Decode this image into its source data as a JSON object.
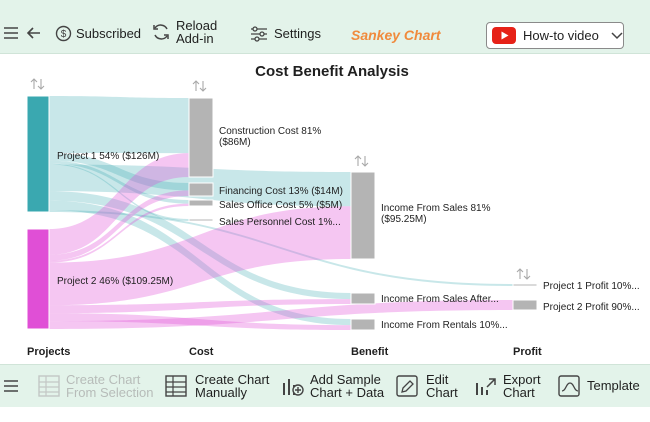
{
  "toolbar_top": {
    "subscribed_label": "Subscribed",
    "reload_label": "Reload\nAdd-in",
    "settings_label": "Settings",
    "app_title": "Sankey Chart",
    "howto_label": "How-to video"
  },
  "toolbar_bottom": {
    "create_from_selection_label": "Create Chart\nFrom Selection",
    "create_manually_label": "Create Chart\nManually",
    "add_sample_label": "Add Sample\nChart + Data",
    "edit_chart_label": "Edit\nChart",
    "export_chart_label": "Export\nChart",
    "template_label": "Template"
  },
  "colors": {
    "toolbar_bg": "#e3f3ea",
    "accent": "#f08a3c",
    "project1": "#3aa8b0",
    "project2": "#e04fd6",
    "gray_node": "#b4b4b4"
  },
  "chart_data": {
    "type": "sankey",
    "title": "Cost Benefit Analysis",
    "stages": [
      "Projects",
      "Cost",
      "Benefit",
      "Profit"
    ],
    "nodes": [
      {
        "id": "p1",
        "stage": 0,
        "label": "Project 1 54% ($126M)",
        "value": 126,
        "color": "#3aa8b0"
      },
      {
        "id": "p2",
        "stage": 0,
        "label": "Project 2 46% ($109.25M)",
        "value": 109.25,
        "color": "#e04fd6"
      },
      {
        "id": "cc",
        "stage": 1,
        "label": "Construction Cost 81%\n($86M)",
        "value": 86,
        "color": "#b4b4b4"
      },
      {
        "id": "fc",
        "stage": 1,
        "label": "Financing Cost 13% ($14M)",
        "value": 14,
        "color": "#b4b4b4"
      },
      {
        "id": "soc",
        "stage": 1,
        "label": "Sales Office Cost 5% ($5M)",
        "value": 5,
        "color": "#b4b4b4"
      },
      {
        "id": "spc",
        "stage": 1,
        "label": "Sales Personnel Cost 1%...",
        "value": 1,
        "color": "#b4b4b4"
      },
      {
        "id": "ifs",
        "stage": 2,
        "label": "Income From Sales 81%\n($95.25M)",
        "value": 95.25,
        "color": "#b4b4b4"
      },
      {
        "id": "ifsa",
        "stage": 2,
        "label": "Income From Sales After...",
        "value": 12,
        "color": "#b4b4b4"
      },
      {
        "id": "ifr",
        "stage": 2,
        "label": "Income From Rentals 10%...",
        "value": 12,
        "color": "#b4b4b4"
      },
      {
        "id": "pp1",
        "stage": 3,
        "label": "Project 1 Profit 10%...",
        "value": 1,
        "color": "#b4b4b4"
      },
      {
        "id": "pp2",
        "stage": 3,
        "label": "Project 2 Profit 90%...",
        "value": 9,
        "color": "#b4b4b4"
      }
    ],
    "links": [
      {
        "source": "p1",
        "target": "cc",
        "value": 60
      },
      {
        "source": "p1",
        "target": "fc",
        "value": 8
      },
      {
        "source": "p1",
        "target": "soc",
        "value": 3
      },
      {
        "source": "p1",
        "target": "spc",
        "value": 1
      },
      {
        "source": "p1",
        "target": "ifs",
        "value": 28
      },
      {
        "source": "p1",
        "target": "ifsa",
        "value": 10
      },
      {
        "source": "p1",
        "target": "ifr",
        "value": 10
      },
      {
        "source": "p1",
        "target": "pp1",
        "value": 2
      },
      {
        "source": "p2",
        "target": "cc",
        "value": 26
      },
      {
        "source": "p2",
        "target": "fc",
        "value": 6
      },
      {
        "source": "p2",
        "target": "soc",
        "value": 2
      },
      {
        "source": "p2",
        "target": "ifs",
        "value": 43
      },
      {
        "source": "p2",
        "target": "ifsa",
        "value": 8
      },
      {
        "source": "p2",
        "target": "ifr",
        "value": 8
      },
      {
        "source": "p2",
        "target": "pp2",
        "value": 8
      }
    ]
  }
}
